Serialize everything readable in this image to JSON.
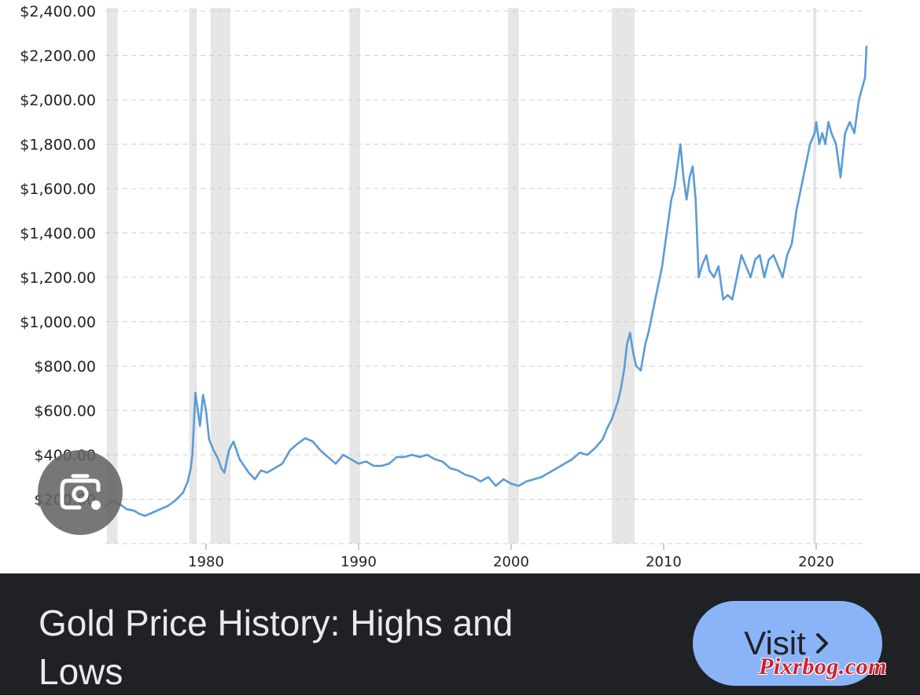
{
  "chart_data": {
    "type": "line",
    "y_tick_labels": [
      "$2,400.00",
      "$2,200.00",
      "$2,000.00",
      "$1,800.00",
      "$1,600.00",
      "$1,400.00",
      "$1,200.00",
      "$1,000.00",
      "$800.00",
      "$600.00",
      "$400.00",
      "$200.00"
    ],
    "y_tick_values": [
      2400,
      2200,
      2000,
      1800,
      1600,
      1400,
      1200,
      1000,
      800,
      600,
      400,
      200
    ],
    "x_tick_labels": [
      "1980",
      "1990",
      "2000",
      "2010",
      "2020"
    ],
    "x_tick_values": [
      1980,
      1990,
      2000,
      2010,
      2020
    ],
    "xlim": [
      1973.4,
      2023.3
    ],
    "ylim": [
      0,
      2400
    ],
    "grid": "horizontal dashed",
    "series_color": "#5b9bd5",
    "shaded_periods": [
      [
        1973.5,
        1974.2
      ],
      [
        1978.9,
        1979.4
      ],
      [
        1980.3,
        1981.6
      ],
      [
        1989.4,
        1990.1
      ],
      [
        1999.8,
        2000.5
      ],
      [
        2006.6,
        2008.1
      ],
      [
        2019.8,
        2020.0
      ]
    ],
    "series": [
      {
        "x": [
          1973.4,
          1973.7,
          1974.0,
          1974.4,
          1974.8,
          1975.3,
          1975.6,
          1976.0,
          1976.5,
          1977.0,
          1977.5,
          1978.0,
          1978.5,
          1978.8,
          1979.0,
          1979.1,
          1979.3,
          1979.6,
          1979.8,
          1980.0,
          1980.2,
          1980.5,
          1980.8,
          1981.0,
          1981.2,
          1981.5,
          1981.8,
          1982.2,
          1982.5,
          1982.8,
          1983.2,
          1983.6,
          1984.0,
          1984.5,
          1985.0,
          1985.5,
          1986.0,
          1986.5,
          1987.0,
          1987.5,
          1988.0,
          1988.5,
          1989.0,
          1989.5,
          1990.0,
          1990.5,
          1991.0,
          1991.5,
          1992.0,
          1992.5,
          1993.0,
          1993.5,
          1994.0,
          1994.5,
          1995.0,
          1995.5,
          1996.0,
          1996.5,
          1997.0,
          1997.5,
          1998.0,
          1998.5,
          1999.0,
          1999.5,
          2000.0,
          2000.5,
          2001.0,
          2001.5,
          2002.0,
          2002.5,
          2003.0,
          2003.5,
          2004.0,
          2004.5,
          2005.0,
          2005.5,
          2006.0,
          2006.3,
          2006.6,
          2006.8,
          2007.0,
          2007.2,
          2007.4,
          2007.6,
          2007.8,
          2008.0,
          2008.2,
          2008.5,
          2008.8,
          2009.0,
          2009.3,
          2009.6,
          2009.9,
          2010.1,
          2010.3,
          2010.5,
          2010.7,
          2010.9,
          2011.1,
          2011.3,
          2011.5,
          2011.7,
          2011.9,
          2012.1,
          2012.3,
          2012.5,
          2012.8,
          2013.0,
          2013.3,
          2013.6,
          2013.9,
          2014.2,
          2014.5,
          2014.8,
          2015.1,
          2015.4,
          2015.7,
          2016.0,
          2016.3,
          2016.6,
          2016.9,
          2017.2,
          2017.5,
          2017.8,
          2018.1,
          2018.4,
          2018.7,
          2019.0,
          2019.3,
          2019.6,
          2019.9,
          2020.0,
          2020.2,
          2020.4,
          2020.6,
          2020.8,
          2021.0,
          2021.3,
          2021.6,
          2021.9,
          2022.2,
          2022.5,
          2022.8,
          2023.0,
          2023.2,
          2023.3
        ],
        "y": [
          165,
          185,
          190,
          175,
          155,
          148,
          135,
          125,
          140,
          155,
          170,
          195,
          230,
          280,
          340,
          400,
          680,
          530,
          670,
          600,
          470,
          420,
          380,
          340,
          320,
          420,
          460,
          380,
          350,
          320,
          290,
          330,
          320,
          340,
          360,
          420,
          450,
          475,
          460,
          420,
          390,
          360,
          400,
          380,
          360,
          370,
          350,
          350,
          360,
          390,
          390,
          400,
          390,
          400,
          380,
          370,
          340,
          330,
          310,
          300,
          280,
          300,
          260,
          290,
          270,
          260,
          280,
          290,
          300,
          320,
          340,
          360,
          380,
          410,
          400,
          430,
          470,
          520,
          560,
          600,
          640,
          700,
          780,
          900,
          950,
          860,
          800,
          780,
          900,
          950,
          1050,
          1150,
          1250,
          1350,
          1450,
          1550,
          1600,
          1700,
          1800,
          1650,
          1550,
          1650,
          1700,
          1550,
          1200,
          1250,
          1300,
          1230,
          1200,
          1250,
          1100,
          1120,
          1100,
          1200,
          1300,
          1250,
          1200,
          1280,
          1300,
          1200,
          1280,
          1300,
          1250,
          1200,
          1300,
          1350,
          1500,
          1600,
          1700,
          1800,
          1850,
          1900,
          1800,
          1850,
          1800,
          1900,
          1850,
          1800,
          1650,
          1850,
          1900,
          1850,
          2000,
          2050,
          2100,
          2240
        ]
      }
    ]
  },
  "result": {
    "title": "Gold Price History: Highs and Lows",
    "visit_label": "Visit",
    "watermark": "Pixrbog.com"
  },
  "icons": {
    "lens": "google-lens-icon",
    "visit_arrow": "chevron-right-icon"
  },
  "colors": {
    "bottom_bar": "#202124",
    "visit_button": "#8ab4f8",
    "title_text": "#e8eaed",
    "shade": "#e6e6e6",
    "line": "#5b9bd5",
    "watermark": "#d3202a"
  }
}
